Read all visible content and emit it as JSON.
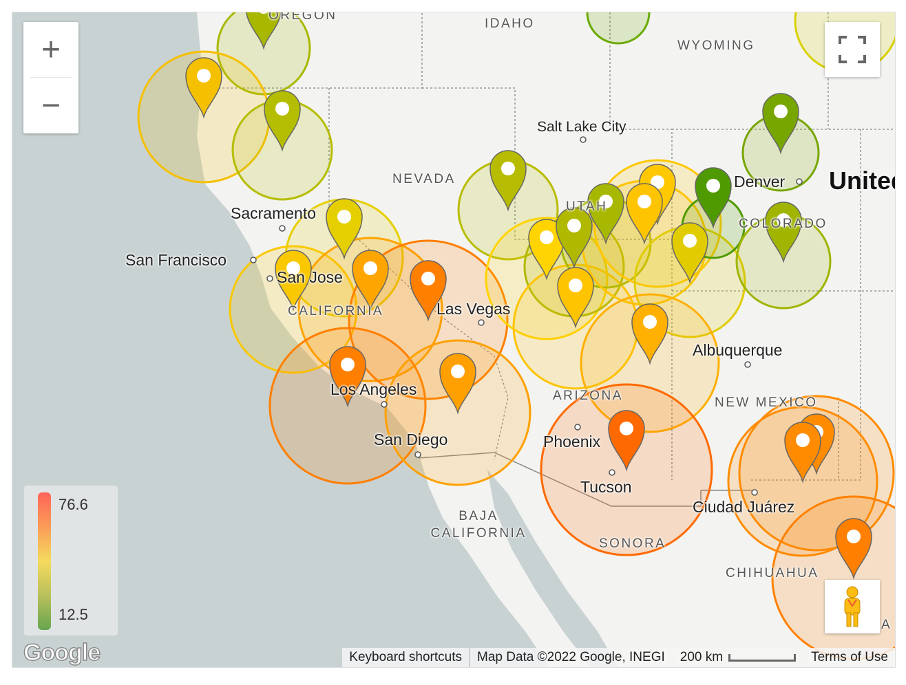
{
  "map": {
    "places": {
      "oregon": "OREGON",
      "idaho": "IDAHO",
      "wyoming": "WYOMING",
      "nevada": "NEVADA",
      "utah": "UTAH",
      "colorado": "COLORADO",
      "california": "CALIFORNIA",
      "arizona": "ARIZONA",
      "new_mexico": "NEW MEXICO",
      "baja_california": "BAJA CALIFORNIA",
      "sonora": "SONORA",
      "chihuahua": "CHIHUAHUA",
      "salt_lake_city": "Salt Lake City",
      "sacramento": "Sacramento",
      "san_francisco": "San Francisco",
      "san_jose": "San Jose",
      "las_vegas": "Las Vegas",
      "los_angeles": "Los Angeles",
      "san_diego": "San Diego",
      "phoenix": "Phoenix",
      "tucson": "Tucson",
      "denver": "Denver",
      "albuquerque": "Albuquerque",
      "ciudad_juarez": "Ciudad Juárez",
      "united_states": "United",
      "coahuila_fragment": "A"
    },
    "marker_colors": [
      "#a8b800",
      "#f5c000",
      "#b5bd00",
      "#e6cf00",
      "#f9c800",
      "#ffa500",
      "#ff7f00",
      "#ff7f00",
      "#ffa000",
      "#b8bc00",
      "#ffd400",
      "#b0b800",
      "#ffc400",
      "#a8b800",
      "#ffc800",
      "#ffc400",
      "#e0cc00",
      "#4f9a00",
      "#78a600",
      "#a0b400",
      "#ffb000",
      "#ff6a00",
      "#ff8c00",
      "#ff8c00",
      "#ff8000"
    ],
    "offscreen_circle_colors": [
      "#6aaa00",
      "#d8d000"
    ],
    "ocean_color": "#c9d2d3",
    "land_color": "#f3f3f1"
  },
  "controls": {
    "zoom_in": "+",
    "zoom_out": "−",
    "fullscreen_icon": "fullscreen-icon",
    "pegman_icon": "street-view-pegman-icon"
  },
  "legend": {
    "max": "76.6",
    "min": "12.5",
    "gradient": [
      "#ff6459",
      "#fa9c57",
      "#f5da5e",
      "#b9c05b",
      "#66a54f"
    ]
  },
  "footer": {
    "keyboard_shortcuts": "Keyboard shortcuts",
    "map_data": "Map Data ©2022 Google, INEGI",
    "scale": "200 km",
    "terms": "Terms of Use"
  },
  "logo": "Google"
}
